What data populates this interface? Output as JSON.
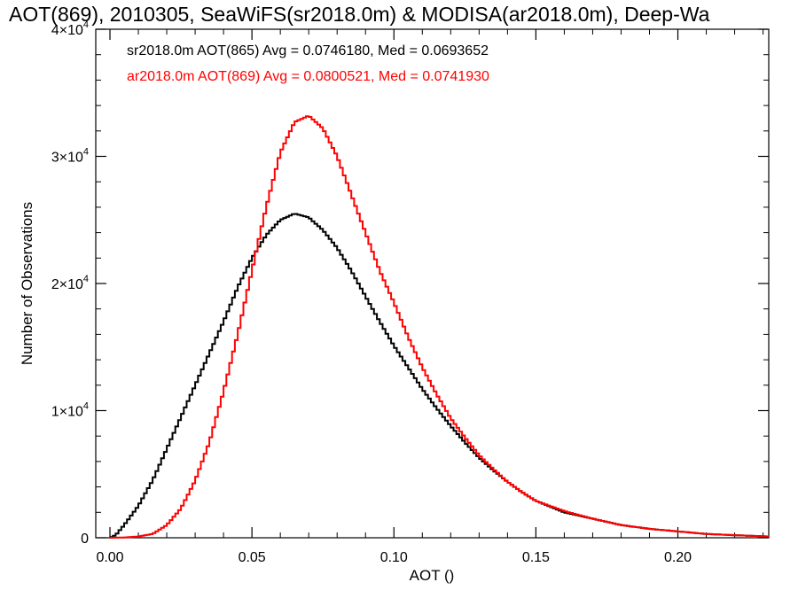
{
  "chart_data": {
    "type": "line",
    "title": "AOT(869), 2010305, SeaWiFS(sr2018.0m) & MODISA(ar2018.0m), Deep-Wa",
    "xlabel": "AOT ()",
    "ylabel": "Number of Observations",
    "xlim": [
      -0.005,
      0.232
    ],
    "ylim": [
      0,
      40000
    ],
    "x_ticks": [
      0.0,
      0.05,
      0.1,
      0.15,
      0.2
    ],
    "x_tick_labels": [
      "0.00",
      "0.05",
      "0.10",
      "0.15",
      "0.20"
    ],
    "y_ticks": [
      0,
      10000,
      20000,
      30000,
      40000
    ],
    "y_tick_labels": [
      {
        "mant": "0",
        "exp": ""
      },
      {
        "mant": "1×10",
        "exp": "4"
      },
      {
        "mant": "2×10",
        "exp": "4"
      },
      {
        "mant": "3×10",
        "exp": "4"
      },
      {
        "mant": "4×10",
        "exp": "4"
      }
    ],
    "step": "histogram",
    "grid": false,
    "series": [
      {
        "name": "sr2018.0m AOT(865)",
        "color": "#000000",
        "annotation": "sr2018.0m AOT(865) Avg = 0.0746180, Med = 0.0693652",
        "points": [
          [
            0.0,
            0
          ],
          [
            0.002,
            200
          ],
          [
            0.005,
            1000
          ],
          [
            0.01,
            2500
          ],
          [
            0.015,
            4500
          ],
          [
            0.02,
            7000
          ],
          [
            0.025,
            9500
          ],
          [
            0.03,
            12000
          ],
          [
            0.035,
            14500
          ],
          [
            0.04,
            17000
          ],
          [
            0.045,
            19700
          ],
          [
            0.05,
            22000
          ],
          [
            0.055,
            23800
          ],
          [
            0.06,
            25000
          ],
          [
            0.065,
            25500
          ],
          [
            0.07,
            25200
          ],
          [
            0.075,
            24200
          ],
          [
            0.08,
            22800
          ],
          [
            0.085,
            21000
          ],
          [
            0.09,
            19000
          ],
          [
            0.095,
            17000
          ],
          [
            0.1,
            15100
          ],
          [
            0.105,
            13400
          ],
          [
            0.11,
            11700
          ],
          [
            0.115,
            10200
          ],
          [
            0.12,
            8800
          ],
          [
            0.125,
            7500
          ],
          [
            0.13,
            6300
          ],
          [
            0.135,
            5300
          ],
          [
            0.14,
            4400
          ],
          [
            0.145,
            3600
          ],
          [
            0.15,
            2900
          ],
          [
            0.16,
            2000
          ],
          [
            0.17,
            1500
          ],
          [
            0.18,
            1000
          ],
          [
            0.19,
            700
          ],
          [
            0.2,
            500
          ],
          [
            0.21,
            300
          ],
          [
            0.22,
            200
          ],
          [
            0.232,
            100
          ]
        ]
      },
      {
        "name": "ar2018.0m AOT(869)",
        "color": "#ff0000",
        "annotation": "ar2018.0m AOT(869) Avg = 0.0800521, Med = 0.0741930",
        "points": [
          [
            0.0,
            0
          ],
          [
            0.005,
            20
          ],
          [
            0.01,
            100
          ],
          [
            0.015,
            300
          ],
          [
            0.02,
            1000
          ],
          [
            0.025,
            2300
          ],
          [
            0.03,
            4500
          ],
          [
            0.035,
            7500
          ],
          [
            0.04,
            11500
          ],
          [
            0.045,
            16000
          ],
          [
            0.05,
            21000
          ],
          [
            0.055,
            26000
          ],
          [
            0.06,
            30300
          ],
          [
            0.065,
            32700
          ],
          [
            0.07,
            33200
          ],
          [
            0.075,
            32200
          ],
          [
            0.08,
            30000
          ],
          [
            0.085,
            27000
          ],
          [
            0.09,
            24000
          ],
          [
            0.095,
            21000
          ],
          [
            0.1,
            18500
          ],
          [
            0.105,
            15800
          ],
          [
            0.11,
            13400
          ],
          [
            0.115,
            11300
          ],
          [
            0.12,
            9400
          ],
          [
            0.125,
            7900
          ],
          [
            0.13,
            6500
          ],
          [
            0.135,
            5400
          ],
          [
            0.14,
            4400
          ],
          [
            0.145,
            3600
          ],
          [
            0.15,
            2900
          ],
          [
            0.16,
            2100
          ],
          [
            0.17,
            1500
          ],
          [
            0.18,
            1000
          ],
          [
            0.19,
            700
          ],
          [
            0.2,
            500
          ],
          [
            0.21,
            300
          ],
          [
            0.22,
            200
          ],
          [
            0.232,
            100
          ]
        ]
      }
    ]
  }
}
